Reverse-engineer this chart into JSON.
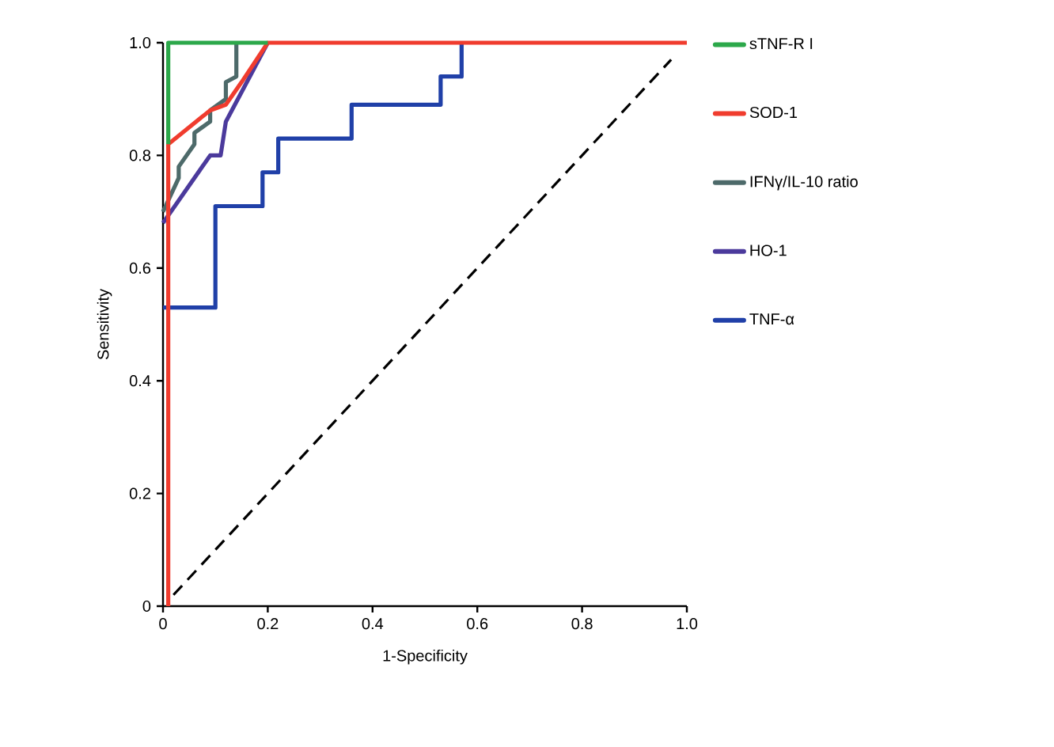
{
  "chart_data": {
    "type": "line",
    "xlabel": "1-Specificity",
    "ylabel": "Sensitivity",
    "xlim": [
      0,
      1
    ],
    "ylim": [
      0,
      1
    ],
    "xticks": [
      0,
      0.2,
      0.4,
      0.6,
      0.8,
      {
        "value": 1,
        "label": "1.0"
      }
    ],
    "yticks": [
      0,
      0.2,
      0.4,
      0.6,
      0.8,
      {
        "value": 1,
        "label": "1.0"
      }
    ],
    "grid": false,
    "legend": "right",
    "marker": "none",
    "series": [
      {
        "name": "sTNF-R I",
        "color": "#2ca84a",
        "x": [
          0.01,
          0.01,
          0.2
        ],
        "values": [
          0.82,
          1,
          1
        ]
      },
      {
        "name": "SOD-1",
        "color": "#f03c2e",
        "x": [
          0.01,
          0.01,
          0.09,
          0.12,
          0.15,
          0.2,
          1
        ],
        "values": [
          0,
          0.82,
          0.88,
          0.89,
          0.93,
          1,
          1
        ]
      },
      {
        "name": "IFNγ/IL-10 ratio",
        "color": "#4d6a6a",
        "x": [
          0,
          0.01,
          0.03,
          0.03,
          0.06,
          0.06,
          0.09,
          0.09,
          0.12,
          0.12,
          0.14,
          0.14
        ],
        "values": [
          0.7,
          0.72,
          0.76,
          0.78,
          0.82,
          0.84,
          0.86,
          0.88,
          0.9,
          0.93,
          0.94,
          1
        ]
      },
      {
        "name": "HO-1",
        "color": "#4b3a9c",
        "x": [
          0,
          0.09,
          0.11,
          0.12,
          0.2
        ],
        "values": [
          0.68,
          0.8,
          0.8,
          0.86,
          1
        ]
      },
      {
        "name": "TNF-α",
        "color": "#2040a8",
        "x": [
          0,
          0.1,
          0.1,
          0.19,
          0.19,
          0.22,
          0.22,
          0.36,
          0.36,
          0.53,
          0.53,
          0.57,
          0.57
        ],
        "values": [
          0.53,
          0.53,
          0.71,
          0.71,
          0.77,
          0.77,
          0.83,
          0.83,
          0.89,
          0.89,
          0.94,
          0.94,
          1
        ]
      },
      {
        "color": "#000000",
        "line_style": "dashed",
        "x": [
          0.02,
          0.97
        ],
        "values": [
          0.02,
          0.97
        ]
      }
    ]
  }
}
